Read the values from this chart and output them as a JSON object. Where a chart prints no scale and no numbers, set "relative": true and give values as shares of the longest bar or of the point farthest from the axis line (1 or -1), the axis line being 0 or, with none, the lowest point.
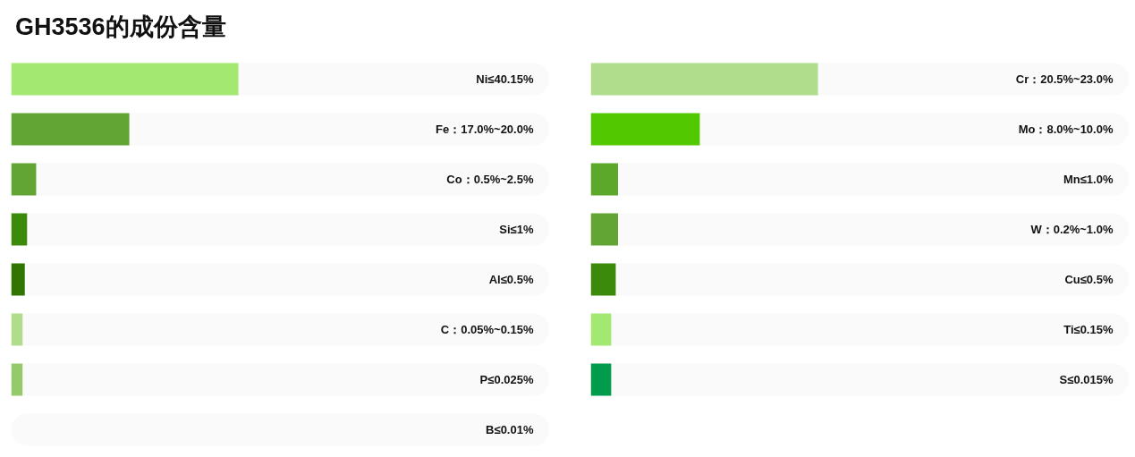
{
  "chart_data": [
    {
      "type": "bar",
      "orientation": "horizontal",
      "relative": true,
      "title": "GH3536的成份含量",
      "categories": [
        "Ni≤40.15%",
        "Fe：17.0%~20.0%",
        "Co：0.5%~2.5%",
        "Si≤1%",
        "Al≤0.5%",
        "C：0.05%~0.15%",
        "P≤0.025%",
        "B≤0.01%"
      ],
      "values": [
        1,
        0.52,
        0.11,
        0.07,
        0.06,
        0.05,
        0.05,
        0
      ],
      "colors": [
        "#a3e870",
        "#63a535",
        "#63a535",
        "#3c8a0c",
        "#317400",
        "#b0dd8c",
        "#94c96c",
        "#94c96c"
      ]
    },
    {
      "type": "bar",
      "orientation": "horizontal",
      "relative": true,
      "categories": [
        "Cr：20.5%~23.0%",
        "Mo：8.0%~10.0%",
        "Mn≤1.0%",
        "W：0.2%~1.0%",
        "Cu≤0.5%",
        "Ti≤0.15%",
        "S≤0.015%"
      ],
      "values": [
        1,
        0.48,
        0.12,
        0.12,
        0.11,
        0.09,
        0.09
      ],
      "colors": [
        "#b0dd8c",
        "#52c800",
        "#5ba82a",
        "#63a535",
        "#3c8a0c",
        "#a3e870",
        "#009b4b"
      ]
    }
  ]
}
